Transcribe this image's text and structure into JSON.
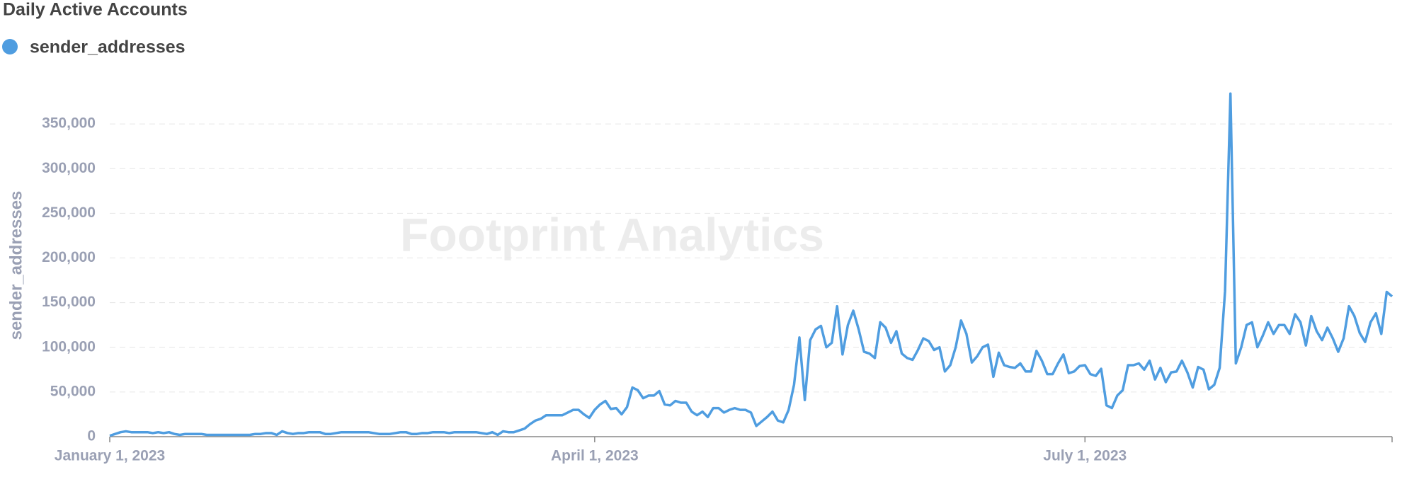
{
  "chart_data": {
    "type": "line",
    "title": "Daily Active Accounts",
    "ylabel": "sender_addresses",
    "watermark": "Footprint Analytics",
    "legend": "top-left",
    "grid": true,
    "x": [
      "2023-01-01",
      "2023-01-02",
      "2023-01-03",
      "2023-01-04",
      "2023-01-05",
      "2023-01-06",
      "2023-01-07",
      "2023-01-08",
      "2023-01-09",
      "2023-01-10",
      "2023-01-11",
      "2023-01-12",
      "2023-01-13",
      "2023-01-14",
      "2023-01-15",
      "2023-01-16",
      "2023-01-17",
      "2023-01-18",
      "2023-01-19",
      "2023-01-20",
      "2023-01-21",
      "2023-01-22",
      "2023-01-23",
      "2023-01-24",
      "2023-01-25",
      "2023-01-26",
      "2023-01-27",
      "2023-01-28",
      "2023-01-29",
      "2023-01-30",
      "2023-01-31",
      "2023-02-01",
      "2023-02-02",
      "2023-02-03",
      "2023-02-04",
      "2023-02-05",
      "2023-02-06",
      "2023-02-07",
      "2023-02-08",
      "2023-02-09",
      "2023-02-10",
      "2023-02-11",
      "2023-02-12",
      "2023-02-13",
      "2023-02-14",
      "2023-02-15",
      "2023-02-16",
      "2023-02-17",
      "2023-02-18",
      "2023-02-19",
      "2023-02-20",
      "2023-02-21",
      "2023-02-22",
      "2023-02-23",
      "2023-02-24",
      "2023-02-25",
      "2023-02-26",
      "2023-02-27",
      "2023-02-28",
      "2023-03-01",
      "2023-03-02",
      "2023-03-03",
      "2023-03-04",
      "2023-03-05",
      "2023-03-06",
      "2023-03-07",
      "2023-03-08",
      "2023-03-09",
      "2023-03-10",
      "2023-03-11",
      "2023-03-12",
      "2023-03-13",
      "2023-03-14",
      "2023-03-15",
      "2023-03-16",
      "2023-03-17",
      "2023-03-18",
      "2023-03-19",
      "2023-03-20",
      "2023-03-21",
      "2023-03-22",
      "2023-03-23",
      "2023-03-24",
      "2023-03-25",
      "2023-03-26",
      "2023-03-27",
      "2023-03-28",
      "2023-03-29",
      "2023-03-30",
      "2023-03-31",
      "2023-04-01",
      "2023-04-02",
      "2023-04-03",
      "2023-04-04",
      "2023-04-05",
      "2023-04-06",
      "2023-04-07",
      "2023-04-08",
      "2023-04-09",
      "2023-04-10",
      "2023-04-11",
      "2023-04-12",
      "2023-04-13",
      "2023-04-14",
      "2023-04-15",
      "2023-04-16",
      "2023-04-17",
      "2023-04-18",
      "2023-04-19",
      "2023-04-20",
      "2023-04-21",
      "2023-04-22",
      "2023-04-23",
      "2023-04-24",
      "2023-04-25",
      "2023-04-26",
      "2023-04-27",
      "2023-04-28",
      "2023-04-29",
      "2023-04-30",
      "2023-05-01",
      "2023-05-02",
      "2023-05-03",
      "2023-05-04",
      "2023-05-05",
      "2023-05-06",
      "2023-05-07",
      "2023-05-08",
      "2023-05-09",
      "2023-05-10",
      "2023-05-11",
      "2023-05-12",
      "2023-05-13",
      "2023-05-14",
      "2023-05-15",
      "2023-05-16",
      "2023-05-17",
      "2023-05-18",
      "2023-05-19",
      "2023-05-20",
      "2023-05-21",
      "2023-05-22",
      "2023-05-23",
      "2023-05-24",
      "2023-05-25",
      "2023-05-26",
      "2023-05-27",
      "2023-05-28",
      "2023-05-29",
      "2023-05-30",
      "2023-05-31",
      "2023-06-01",
      "2023-06-02",
      "2023-06-03",
      "2023-06-04",
      "2023-06-05",
      "2023-06-06",
      "2023-06-07",
      "2023-06-08",
      "2023-06-09",
      "2023-06-10",
      "2023-06-11",
      "2023-06-12",
      "2023-06-13",
      "2023-06-14",
      "2023-06-15",
      "2023-06-16",
      "2023-06-17",
      "2023-06-18",
      "2023-06-19",
      "2023-06-20",
      "2023-06-21",
      "2023-06-22",
      "2023-06-23",
      "2023-06-24",
      "2023-06-25",
      "2023-06-26",
      "2023-06-27",
      "2023-06-28",
      "2023-06-29",
      "2023-06-30",
      "2023-07-01",
      "2023-07-02",
      "2023-07-03",
      "2023-07-04",
      "2023-07-05",
      "2023-07-06",
      "2023-07-07",
      "2023-07-08",
      "2023-07-09",
      "2023-07-10",
      "2023-07-11",
      "2023-07-12",
      "2023-07-13",
      "2023-07-14",
      "2023-07-15",
      "2023-07-16",
      "2023-07-17",
      "2023-07-18",
      "2023-07-19",
      "2023-07-20",
      "2023-07-21",
      "2023-07-22",
      "2023-07-23",
      "2023-07-24",
      "2023-07-25",
      "2023-07-26",
      "2023-07-27",
      "2023-07-28",
      "2023-07-29",
      "2023-07-30",
      "2023-07-31",
      "2023-08-01",
      "2023-08-02",
      "2023-08-03",
      "2023-08-04",
      "2023-08-05",
      "2023-08-06",
      "2023-08-07",
      "2023-08-08",
      "2023-08-09",
      "2023-08-10",
      "2023-08-11",
      "2023-08-12",
      "2023-08-13",
      "2023-08-14",
      "2023-08-15",
      "2023-08-16",
      "2023-08-17",
      "2023-08-18",
      "2023-08-19",
      "2023-08-20",
      "2023-08-21",
      "2023-08-22",
      "2023-08-23",
      "2023-08-24",
      "2023-08-25",
      "2023-08-26",
      "2023-08-27"
    ],
    "series": [
      {
        "name": "sender_addresses",
        "color": "#4f9de0",
        "values": [
          1000,
          3000,
          5000,
          6000,
          5000,
          5000,
          5000,
          5000,
          4000,
          5000,
          4000,
          5000,
          3000,
          2000,
          3000,
          3000,
          3000,
          3000,
          2000,
          2000,
          2000,
          2000,
          2000,
          2000,
          2000,
          2000,
          2000,
          3000,
          3000,
          4000,
          4000,
          2000,
          6000,
          4000,
          3000,
          4000,
          4000,
          5000,
          5000,
          5000,
          3000,
          3000,
          4000,
          5000,
          5000,
          5000,
          5000,
          5000,
          5000,
          4000,
          3000,
          3000,
          3000,
          4000,
          5000,
          5000,
          3000,
          3000,
          4000,
          4000,
          5000,
          5000,
          5000,
          4000,
          5000,
          5000,
          5000,
          5000,
          5000,
          4000,
          3000,
          5000,
          2000,
          6000,
          5000,
          5000,
          7000,
          9000,
          14000,
          18000,
          20000,
          24000,
          24000,
          24000,
          24000,
          27000,
          30000,
          30000,
          25000,
          21000,
          30000,
          36000,
          40000,
          31000,
          32000,
          25000,
          33000,
          55000,
          52000,
          43000,
          46000,
          46000,
          51000,
          36000,
          35000,
          40000,
          38000,
          38000,
          28000,
          24000,
          28000,
          22000,
          32000,
          32000,
          27000,
          30000,
          32000,
          30000,
          30000,
          27000,
          12000,
          17000,
          22000,
          28000,
          18000,
          16000,
          30000,
          58000,
          111000,
          41000,
          108000,
          120000,
          124000,
          100000,
          105000,
          146000,
          92000,
          125000,
          141000,
          120000,
          95000,
          93000,
          88000,
          128000,
          122000,
          105000,
          118000,
          93000,
          88000,
          86000,
          97000,
          110000,
          107000,
          97000,
          100000,
          73000,
          80000,
          100000,
          130000,
          115000,
          83000,
          90000,
          100000,
          103000,
          67000,
          94000,
          80000,
          78000,
          77000,
          82000,
          73000,
          73000,
          96000,
          85000,
          70000,
          70000,
          82000,
          92000,
          71000,
          73000,
          79000,
          80000,
          70000,
          68000,
          76000,
          35000,
          32000,
          46000,
          52000,
          80000,
          80000,
          82000,
          75000,
          85000,
          64000,
          77000,
          61000,
          72000,
          73000,
          85000,
          72000,
          55000,
          78000,
          75000,
          53000,
          58000,
          77000,
          163000,
          384000,
          82000,
          100000,
          125000,
          128000,
          100000,
          113000,
          128000,
          115000,
          125000,
          125000,
          115000,
          137000,
          128000,
          102000,
          135000,
          118000,
          108000,
          122000,
          110000,
          95000,
          110000,
          146000,
          135000,
          116000,
          106000,
          128000,
          138000,
          115000,
          162000,
          157000
        ]
      }
    ],
    "xlim": [
      "2023-01-01",
      "2023-08-27"
    ],
    "xticks": [
      {
        "value": "2023-01-01",
        "label": "January 1, 2023"
      },
      {
        "value": "2023-04-01",
        "label": "April 1, 2023"
      },
      {
        "value": "2023-07-01",
        "label": "July 1, 2023"
      }
    ],
    "ylim": [
      0,
      400000
    ],
    "yticks": [
      0,
      {
        "value": 50000,
        "label": "50,000"
      },
      {
        "value": 100000,
        "label": "100,000"
      },
      {
        "value": 150000,
        "label": "150,000"
      },
      {
        "value": 200000,
        "label": "200,000"
      },
      {
        "value": 250000,
        "label": "250,000"
      },
      {
        "value": 300000,
        "label": "300,000"
      },
      {
        "value": 350000,
        "label": "350,000"
      }
    ]
  }
}
